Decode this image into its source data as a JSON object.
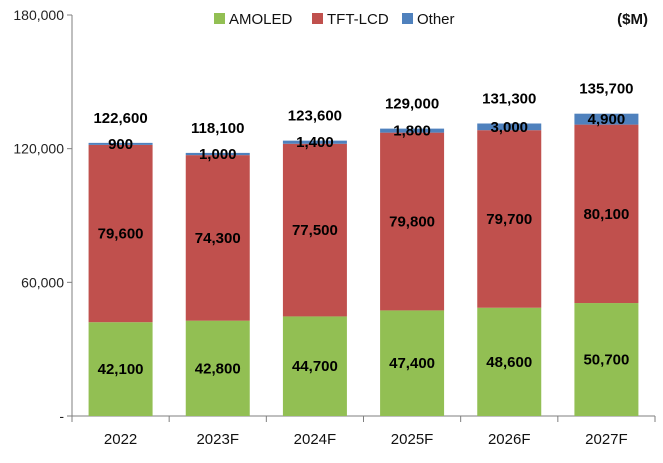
{
  "chart_data": {
    "type": "bar",
    "stacked": true,
    "categories": [
      "2022",
      "2023F",
      "2024F",
      "2025F",
      "2026F",
      "2027F"
    ],
    "series": [
      {
        "name": "AMOLED",
        "color": "#92BF53",
        "values": [
          42100,
          42800,
          44700,
          47400,
          48600,
          50700
        ]
      },
      {
        "name": "TFT-LCD",
        "color": "#C0504D",
        "values": [
          79600,
          74300,
          77500,
          79800,
          79700,
          80100
        ]
      },
      {
        "name": "Other",
        "color": "#4F81BD",
        "values": [
          900,
          1000,
          1400,
          1800,
          3000,
          4900
        ]
      }
    ],
    "segment_labels": [
      [
        "42,100",
        "42,800",
        "44,700",
        "47,400",
        "48,600",
        "50,700"
      ],
      [
        "79,600",
        "74,300",
        "77,500",
        "79,800",
        "79,700",
        "80,100"
      ],
      [
        "900",
        "1,000",
        "1,400",
        "1,800",
        "3,000",
        "4,900"
      ]
    ],
    "totals": [
      122600,
      118100,
      123600,
      129000,
      131300,
      135700
    ],
    "total_labels": [
      "122,600",
      "118,100",
      "123,600",
      "129,000",
      "131,300",
      "135,700"
    ],
    "ylim": [
      0,
      180000
    ],
    "yticks": [
      0,
      60000,
      120000,
      180000
    ],
    "ytick_labels": [
      "-",
      "60,000",
      "120,000",
      "180,000"
    ],
    "unit_label": "($M)",
    "legend": {
      "position": "top-center"
    },
    "grid": false
  }
}
